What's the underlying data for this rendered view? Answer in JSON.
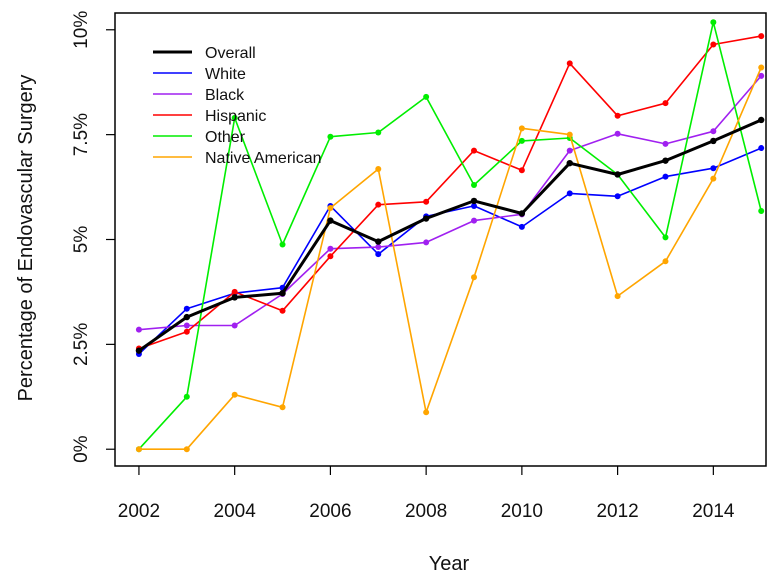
{
  "chart_data": {
    "type": "line",
    "title": "",
    "xlabel": "Year",
    "ylabel": "Percentage of Endovascular Surgery",
    "xlim": [
      2001.5,
      2015.1
    ],
    "ylim": [
      -0.4,
      10.4
    ],
    "x_ticks": [
      2002,
      2004,
      2006,
      2008,
      2010,
      2012,
      2014
    ],
    "x_tick_labels": [
      "2002",
      "2004",
      "2006",
      "2008",
      "2010",
      "2012",
      "2014"
    ],
    "y_ticks": [
      0,
      2.5,
      5,
      7.5,
      10
    ],
    "y_tick_labels": [
      "0%",
      "2.5%",
      "5%",
      "7.5%",
      "10%"
    ],
    "grid": false,
    "legend_position": "top-left",
    "x": [
      2002,
      2003,
      2004,
      2005,
      2006,
      2007,
      2008,
      2009,
      2010,
      2011,
      2012,
      2013,
      2014,
      2015
    ],
    "series": [
      {
        "name": "Overall",
        "color": "#000000",
        "bold": true,
        "values": [
          2.35,
          3.15,
          3.62,
          3.72,
          5.45,
          4.95,
          5.5,
          5.92,
          5.62,
          6.82,
          6.55,
          6.88,
          7.35,
          7.85
        ]
      },
      {
        "name": "White",
        "color": "#0000ff",
        "values": [
          2.27,
          3.35,
          3.72,
          3.85,
          5.8,
          4.65,
          5.55,
          5.8,
          5.3,
          6.1,
          6.03,
          6.5,
          6.7,
          7.18
        ]
      },
      {
        "name": "Black",
        "color": "#a020f0",
        "values": [
          2.85,
          2.95,
          2.95,
          3.7,
          4.78,
          4.82,
          4.93,
          5.45,
          5.6,
          7.12,
          7.52,
          7.28,
          7.58,
          8.9
        ]
      },
      {
        "name": "Hispanic",
        "color": "#ff0000",
        "values": [
          2.4,
          2.8,
          3.75,
          3.3,
          4.6,
          5.83,
          5.9,
          7.12,
          6.65,
          9.2,
          7.95,
          8.25,
          9.65,
          9.85
        ]
      },
      {
        "name": "Other",
        "color": "#00ee00",
        "values": [
          0.0,
          1.25,
          7.9,
          4.88,
          7.45,
          7.55,
          8.4,
          6.3,
          7.35,
          7.42,
          6.55,
          5.05,
          10.18,
          5.68
        ]
      },
      {
        "name": "Native American",
        "color": "#ffa500",
        "values": [
          0.0,
          0.0,
          1.3,
          1.0,
          5.75,
          6.68,
          0.88,
          4.1,
          7.65,
          7.5,
          3.65,
          4.48,
          6.45,
          9.1
        ]
      }
    ]
  }
}
